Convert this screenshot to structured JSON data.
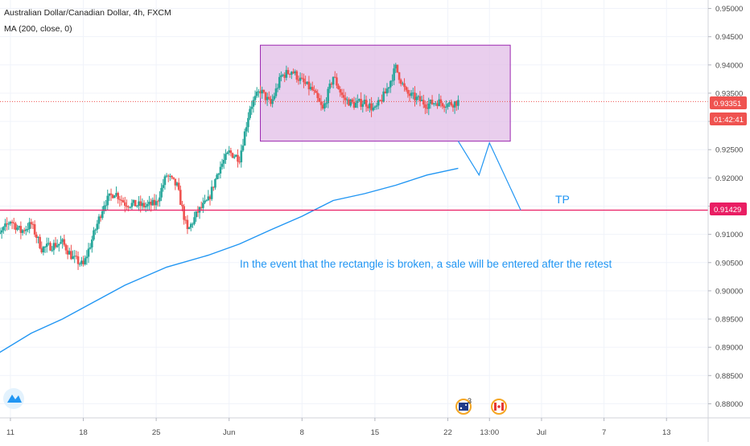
{
  "header": {
    "symbol_title": "Australian Dollar/Canadian Dollar, 4h, FXCM",
    "indicator_label": "MA (200, close, 0)"
  },
  "price_axis": {
    "ticks": [
      "0.95000",
      "0.94500",
      "0.94000",
      "0.93500",
      "0.93000",
      "0.92500",
      "0.92000",
      "0.91500",
      "0.91000",
      "0.90500",
      "0.90000",
      "0.89500",
      "0.89000",
      "0.88500",
      "0.88000"
    ],
    "last_price_label": "0.93351",
    "countdown_label": "01:42:41",
    "tp_price_label": "0.91429"
  },
  "time_axis": {
    "ticks": [
      "11",
      "18",
      "25",
      "Jun",
      "8",
      "15",
      "22",
      "13:00",
      "Jul",
      "7",
      "13"
    ]
  },
  "annotations": {
    "tp_text": "TP",
    "note_text": "In the event that the rectangle is broken, a sale will be entered after the retest"
  },
  "event_badges": [
    {
      "icon": "australia-flag-icon",
      "count": "3"
    },
    {
      "icon": "canada-flag-icon",
      "count": ""
    }
  ],
  "colors": {
    "up": "#26a69a",
    "down": "#ef5350",
    "ma": "#2196f3",
    "rectangle_fill": "#e1bee7",
    "rectangle_border": "#9c27b0",
    "tp_line": "#e91e63",
    "annotation": "#2196f3",
    "axis_text": "#4a4a4a"
  },
  "chart_data": {
    "type": "candlestick",
    "title": "Australian Dollar/Canadian Dollar, 4h, FXCM",
    "ylim": [
      0.8775,
      0.9515
    ],
    "x_range": [
      "2020-05-10",
      "2020-07-17"
    ],
    "close_path": [
      [
        "2020-05-09",
        0.9075
      ],
      [
        "2020-05-11",
        0.9125
      ],
      [
        "2020-05-12",
        0.9105
      ],
      [
        "2020-05-13",
        0.9118
      ],
      [
        "2020-05-14",
        0.9075
      ],
      [
        "2020-05-16",
        0.9085
      ],
      [
        "2020-05-17",
        0.9058
      ],
      [
        "2020-05-18",
        0.9045
      ],
      [
        "2020-05-19",
        0.91
      ],
      [
        "2020-05-20",
        0.9155
      ],
      [
        "2020-05-21",
        0.9175
      ],
      [
        "2020-05-22",
        0.9155
      ],
      [
        "2020-05-24",
        0.915
      ],
      [
        "2020-05-25",
        0.9155
      ],
      [
        "2020-05-26",
        0.9205
      ],
      [
        "2020-05-27",
        0.9185
      ],
      [
        "2020-05-28",
        0.9105
      ],
      [
        "2020-05-29",
        0.914
      ],
      [
        "2020-05-30",
        0.916
      ],
      [
        "2020-05-31",
        0.9215
      ],
      [
        "2020-06-01",
        0.9245
      ],
      [
        "2020-06-02",
        0.9235
      ],
      [
        "2020-06-03",
        0.9325
      ],
      [
        "2020-06-04",
        0.9355
      ],
      [
        "2020-06-05",
        0.933
      ],
      [
        "2020-06-06",
        0.938
      ],
      [
        "2020-06-07",
        0.939
      ],
      [
        "2020-06-08",
        0.937
      ],
      [
        "2020-06-09",
        0.9355
      ],
      [
        "2020-06-10",
        0.932
      ],
      [
        "2020-06-11",
        0.938
      ],
      [
        "2020-06-12",
        0.934
      ],
      [
        "2020-06-13",
        0.933
      ],
      [
        "2020-06-14",
        0.9335
      ],
      [
        "2020-06-15",
        0.932
      ],
      [
        "2020-06-16",
        0.935
      ],
      [
        "2020-06-17",
        0.9395
      ],
      [
        "2020-06-18",
        0.935
      ],
      [
        "2020-06-19",
        0.934
      ],
      [
        "2020-06-20",
        0.933
      ],
      [
        "2020-06-21",
        0.9335
      ],
      [
        "2020-06-22",
        0.933
      ],
      [
        "2020-06-23",
        0.9335
      ]
    ],
    "last_price": 0.93351,
    "moving_average": {
      "label": "MA (200, close, 0)",
      "points": [
        [
          "2020-05-05",
          0.884
        ],
        [
          "2020-05-09",
          0.888
        ],
        [
          "2020-05-13",
          0.8925
        ],
        [
          "2020-05-16",
          0.895
        ],
        [
          "2020-05-19",
          0.898
        ],
        [
          "2020-05-22",
          0.901
        ],
        [
          "2020-05-26",
          0.9042
        ],
        [
          "2020-05-30",
          0.9063
        ],
        [
          "2020-06-02",
          0.9083
        ],
        [
          "2020-06-05",
          0.9108
        ],
        [
          "2020-06-08",
          0.9132
        ],
        [
          "2020-06-11",
          0.916
        ],
        [
          "2020-06-14",
          0.9172
        ],
        [
          "2020-06-17",
          0.9187
        ],
        [
          "2020-06-20",
          0.9205
        ],
        [
          "2020-06-23",
          0.9217
        ]
      ]
    },
    "rectangle": {
      "x_start": "2020-06-04",
      "x_end": "2020-06-28",
      "y_low": 0.9265,
      "y_high": 0.9435
    },
    "tp_level": 0.91429,
    "projection_path": [
      [
        "2020-06-23",
        0.9265
      ],
      [
        "2020-06-25",
        0.9205
      ],
      [
        "2020-06-26",
        0.9262
      ],
      [
        "2020-06-29",
        0.91429
      ]
    ]
  }
}
